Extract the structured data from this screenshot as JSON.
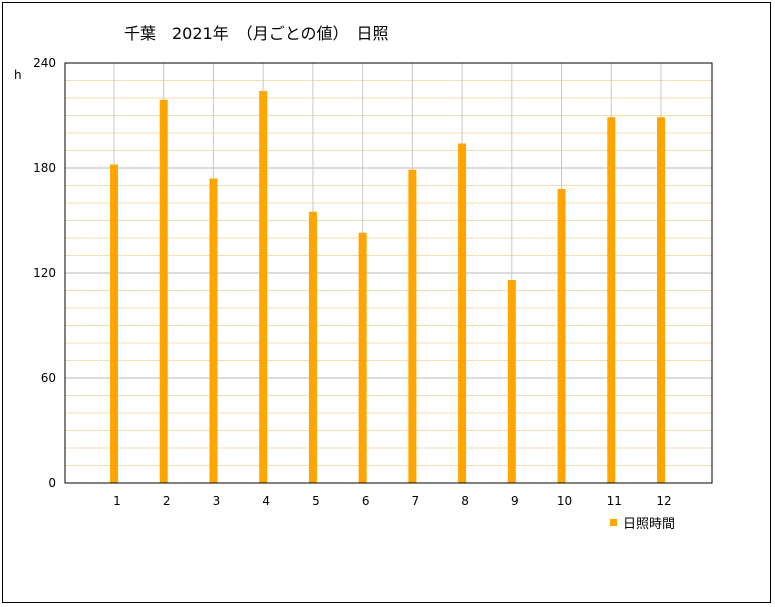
{
  "chart_data": {
    "type": "bar",
    "title": "千葉　2021年　（月ごとの値）　日照",
    "ylabel": "h",
    "xlabel": "",
    "ylim": [
      0,
      240
    ],
    "yticks": [
      0,
      60,
      120,
      180,
      240
    ],
    "categories": [
      "1",
      "2",
      "3",
      "4",
      "5",
      "6",
      "7",
      "8",
      "9",
      "10",
      "11",
      "12"
    ],
    "series": [
      {
        "name": "日照時間",
        "color": "#FFA500",
        "values": [
          182,
          219,
          174,
          224,
          155,
          143,
          179,
          194,
          116,
          168,
          209,
          209
        ]
      }
    ],
    "grid": true,
    "legend": "bottom-right"
  }
}
